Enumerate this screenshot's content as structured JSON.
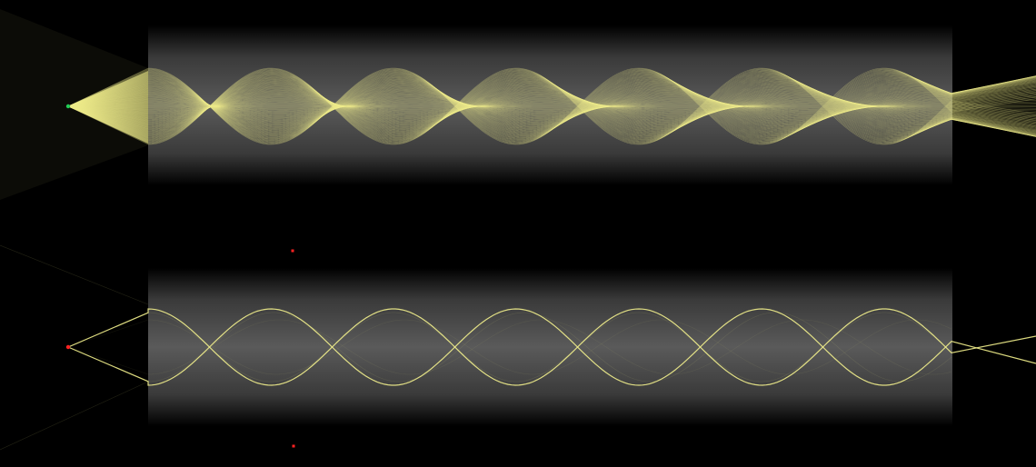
{
  "scene": {
    "background": "#000000",
    "ray_color": "#f2ef8c",
    "source_marker_color": "#22cc55",
    "point_marker_color": "#ff2222"
  },
  "panels": [
    {
      "id": "top",
      "mode": "multi-ray",
      "ray_count": 120,
      "source_marker": "green-dot"
    },
    {
      "id": "bottom",
      "mode": "two-ray",
      "ray_count": 2,
      "source_marker": "red-dot"
    }
  ]
}
